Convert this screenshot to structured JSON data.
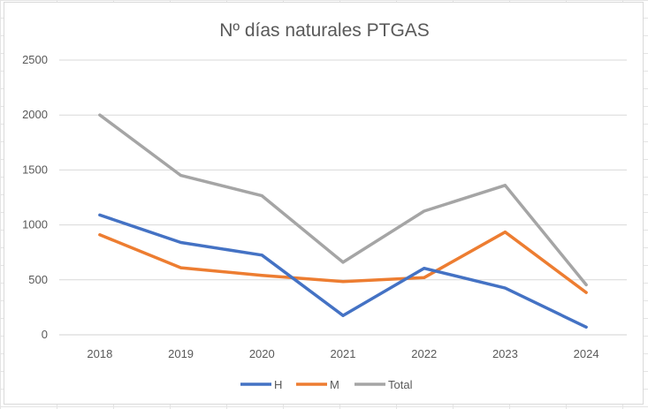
{
  "chart_data": {
    "type": "line",
    "title": "Nº días naturales PTGAS",
    "x": [
      "2018",
      "2019",
      "2020",
      "2021",
      "2022",
      "2023",
      "2024"
    ],
    "ylim": [
      0,
      2500
    ],
    "yticks": [
      0,
      500,
      1000,
      1500,
      2000,
      2500
    ],
    "grid": true,
    "legend_position": "bottom",
    "series": [
      {
        "name": "H",
        "color": "#4472c4",
        "values": [
          1090,
          840,
          725,
          175,
          605,
          425,
          70
        ]
      },
      {
        "name": "M",
        "color": "#ed7d31",
        "values": [
          910,
          610,
          540,
          485,
          520,
          935,
          385
        ]
      },
      {
        "name": "Total",
        "color": "#a5a5a5",
        "values": [
          2000,
          1450,
          1265,
          660,
          1125,
          1360,
          455
        ]
      }
    ]
  }
}
